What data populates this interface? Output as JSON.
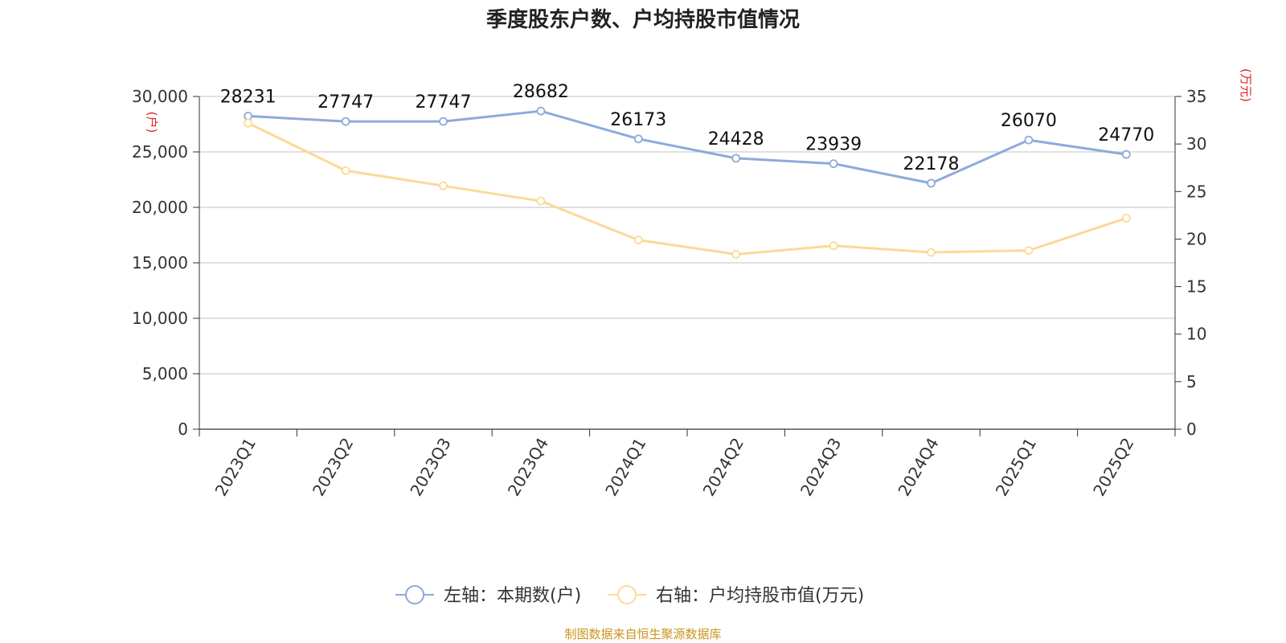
{
  "chart_data": {
    "type": "line",
    "title": "季度股东户数、户均持股市值情况",
    "categories": [
      "2023Q1",
      "2023Q2",
      "2023Q3",
      "2023Q4",
      "2024Q1",
      "2024Q2",
      "2024Q3",
      "2024Q4",
      "2025Q1",
      "2025Q2"
    ],
    "left_axis": {
      "unit": "(户)",
      "ylim": [
        0,
        30000
      ],
      "ticks": [
        "0",
        "5,000",
        "10,000",
        "15,000",
        "20,000",
        "25,000",
        "30,000"
      ]
    },
    "right_axis": {
      "unit": "(万元)",
      "ylim": [
        0,
        35
      ],
      "ticks": [
        "0",
        "5",
        "10",
        "15",
        "20",
        "25",
        "30",
        "35"
      ]
    },
    "series": [
      {
        "name": "左轴：本期数(户)",
        "axis": "left",
        "color": "#8eaadb",
        "values": [
          28231,
          27747,
          27747,
          28682,
          26173,
          24428,
          23939,
          22178,
          26070,
          24770
        ],
        "labels": [
          "28231",
          "27747",
          "27747",
          "28682",
          "26173",
          "24428",
          "23939",
          "22178",
          "26070",
          "24770"
        ]
      },
      {
        "name": "右轴：户均持股市值(万元)",
        "axis": "right",
        "color": "#fcd997",
        "values": [
          32.2,
          27.2,
          25.6,
          24.0,
          19.9,
          18.4,
          19.3,
          18.6,
          18.8,
          22.2
        ]
      }
    ],
    "grid": true,
    "legend": "bottom-center"
  },
  "source": "制图数据来自恒生聚源数据库"
}
